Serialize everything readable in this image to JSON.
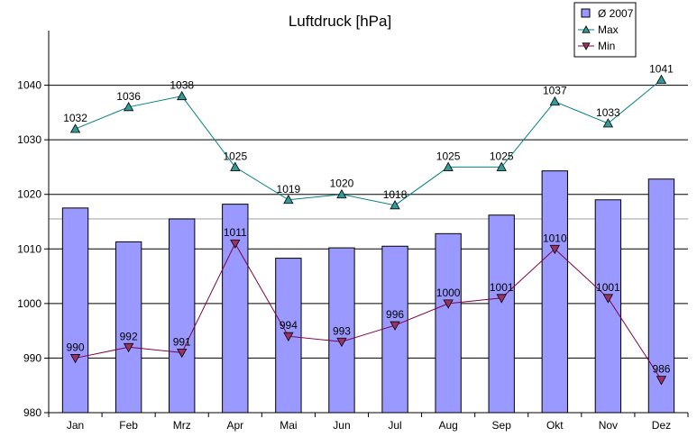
{
  "chart_data": {
    "type": "bar",
    "title": "Luftdruck [hPa]",
    "xlabel": "",
    "ylabel": "",
    "categories": [
      "Jan",
      "Feb",
      "Mrz",
      "Apr",
      "Mai",
      "Jun",
      "Jul",
      "Aug",
      "Sep",
      "Okt",
      "Nov",
      "Dez"
    ],
    "ylim": [
      980,
      1050
    ],
    "yticks": [
      980,
      990,
      1000,
      1010,
      1020,
      1030,
      1040
    ],
    "grid": true,
    "reference_line": 1015.5,
    "legend_position": "top-right",
    "series": [
      {
        "name": "Ø 2007",
        "type": "bar",
        "color": "#9999ff",
        "values": [
          1017.5,
          1011.3,
          1015.5,
          1018.2,
          1008.3,
          1010.2,
          1010.5,
          1012.8,
          1016.2,
          1024.3,
          1019.0,
          1022.8
        ]
      },
      {
        "name": "Max",
        "type": "line",
        "marker": "triangle-up",
        "color": "#008080",
        "marker_color": "#339999",
        "values": [
          1032,
          1036,
          1038,
          1025,
          1019,
          1020,
          1018,
          1025,
          1025,
          1037,
          1033,
          1041
        ]
      },
      {
        "name": "Min",
        "type": "line",
        "marker": "triangle-down",
        "color": "#800040",
        "marker_color": "#993366",
        "values": [
          990,
          992,
          991,
          1011,
          994,
          993,
          996,
          1000,
          1001,
          1010,
          1001,
          986
        ]
      }
    ]
  }
}
